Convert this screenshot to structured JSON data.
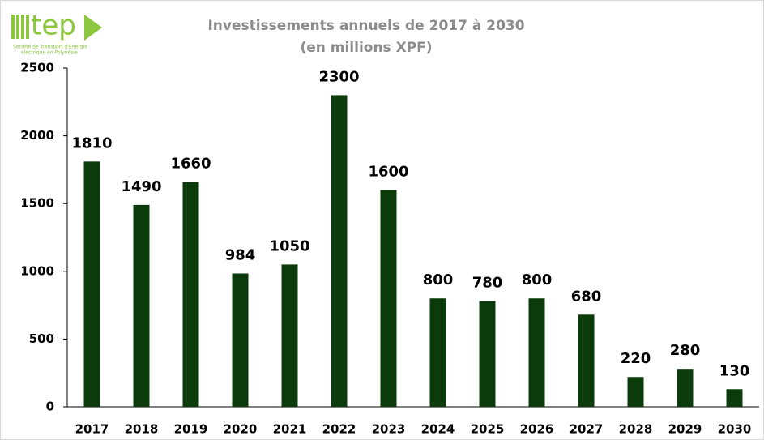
{
  "logo": {
    "name": "tep",
    "tagline_1": "Société de Transport d'Energie",
    "tagline_2": "électrique en Polynésie"
  },
  "chart_data": {
    "type": "bar",
    "title": "Investissements annuels de 2017 à 2030",
    "subtitle": "(en millions XPF)",
    "categories": [
      "2017",
      "2018",
      "2019",
      "2020",
      "2021",
      "2022",
      "2023",
      "2024",
      "2025",
      "2026",
      "2027",
      "2028",
      "2029",
      "2030"
    ],
    "values": [
      1810,
      1490,
      1660,
      984,
      1050,
      2300,
      1600,
      800,
      780,
      800,
      680,
      220,
      280,
      130
    ],
    "color": "#0b3a0b",
    "ylim": [
      0,
      2500
    ],
    "yticks": [
      0,
      500,
      1000,
      1500,
      2000,
      2500
    ],
    "grid": false
  }
}
